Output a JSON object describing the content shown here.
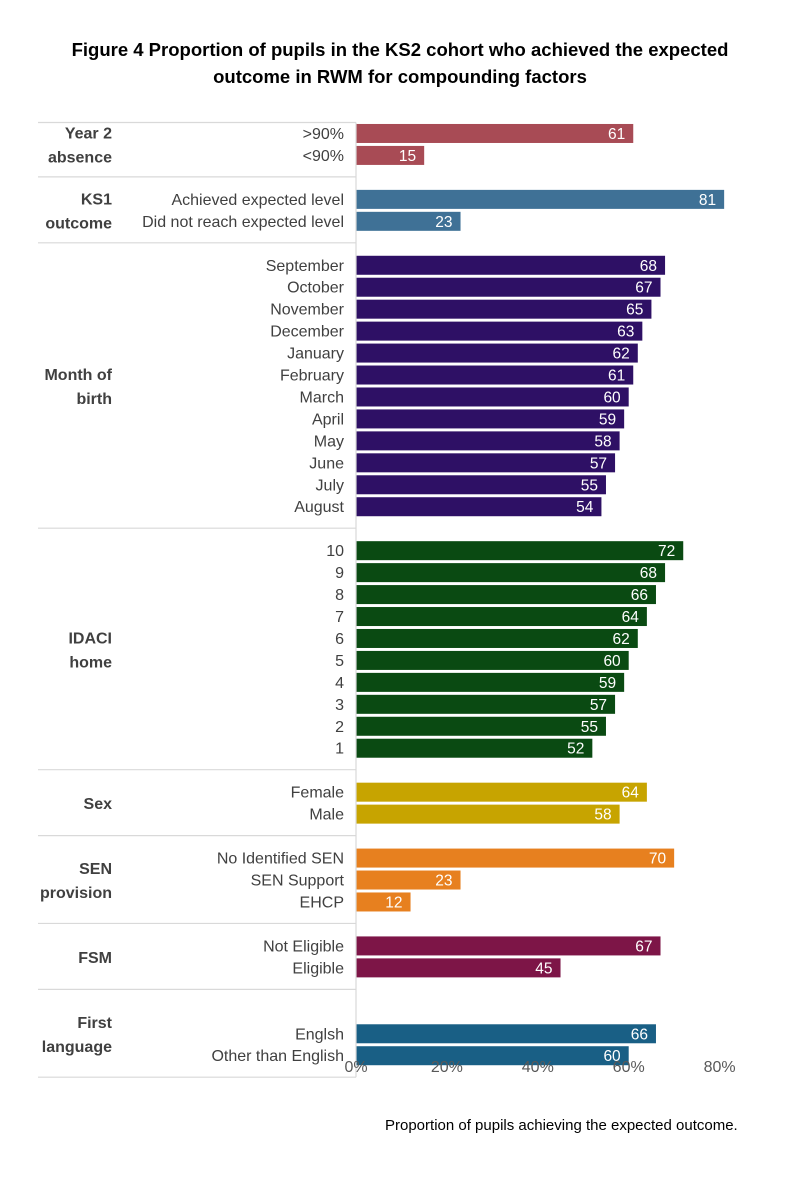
{
  "title_lines": [
    "Figure 4 Proportion of pupils in the KS2 cohort who achieved the expected",
    "outcome in RWM for compounding factors"
  ],
  "chart_data": {
    "type": "bar",
    "orientation": "horizontal",
    "xlabel": "Proportion of pupils achieving the expected outcome.",
    "xlim": [
      0,
      80
    ],
    "x_ticks": [
      0,
      20,
      40,
      60,
      80
    ],
    "x_tick_labels": [
      "0%",
      "20%",
      "40%",
      "60%",
      "80%"
    ],
    "grid": false,
    "groups": [
      {
        "label_lines": [
          "Year 2",
          "absence"
        ],
        "color": "#A84B55",
        "categories": [
          ">90%",
          "<90%"
        ],
        "values": [
          61,
          15
        ]
      },
      {
        "label_lines": [
          "KS1",
          "outcome"
        ],
        "color": "#3F7196",
        "categories": [
          "Achieved expected level",
          "Did not reach expected level"
        ],
        "values": [
          81,
          23
        ]
      },
      {
        "label_lines": [
          "Month of",
          "birth"
        ],
        "color": "#2E1065",
        "categories": [
          "September",
          "October",
          "November",
          "December",
          "January",
          "February",
          "March",
          "April",
          "May",
          "June",
          "July",
          "August"
        ],
        "values": [
          68,
          67,
          65,
          63,
          62,
          61,
          60,
          59,
          58,
          57,
          55,
          54
        ]
      },
      {
        "label_lines": [
          "IDACI",
          "home"
        ],
        "color": "#0A4A12",
        "categories": [
          "10",
          "9",
          "8",
          "7",
          "6",
          "5",
          "4",
          "3",
          "2",
          "1"
        ],
        "values": [
          72,
          68,
          66,
          64,
          62,
          60,
          59,
          57,
          55,
          52
        ]
      },
      {
        "label_lines": [
          "Sex"
        ],
        "color": "#C7A400",
        "categories": [
          "Female",
          "Male"
        ],
        "values": [
          64,
          58
        ]
      },
      {
        "label_lines": [
          "SEN",
          "provision"
        ],
        "color": "#E7801F",
        "categories": [
          "No Identified SEN",
          "SEN Support",
          "EHCP"
        ],
        "values": [
          70,
          23,
          12
        ]
      },
      {
        "label_lines": [
          "FSM"
        ],
        "color": "#7D1547",
        "categories": [
          "Not Eligible",
          "Eligible"
        ],
        "values": [
          67,
          45
        ]
      },
      {
        "label_lines": [
          "First",
          "language"
        ],
        "color": "#195F85",
        "categories": [
          "Englsh",
          "Other than English"
        ],
        "values": [
          66,
          60
        ]
      }
    ]
  }
}
